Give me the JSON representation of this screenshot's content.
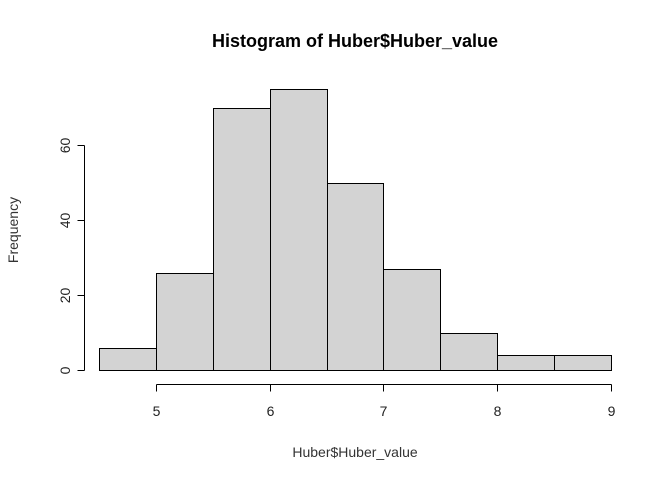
{
  "chart_data": {
    "type": "bar",
    "title": "Histogram of Huber$Huber_value",
    "xlabel": "Huber$Huber_value",
    "ylabel": "Frequency",
    "bins": [
      {
        "start": 4.5,
        "end": 5.0,
        "count": 6
      },
      {
        "start": 5.0,
        "end": 5.5,
        "count": 26
      },
      {
        "start": 5.5,
        "end": 6.0,
        "count": 70
      },
      {
        "start": 6.0,
        "end": 6.5,
        "count": 75
      },
      {
        "start": 6.5,
        "end": 7.0,
        "count": 50
      },
      {
        "start": 7.0,
        "end": 7.5,
        "count": 27
      },
      {
        "start": 7.5,
        "end": 8.0,
        "count": 10
      },
      {
        "start": 8.0,
        "end": 8.5,
        "count": 4
      },
      {
        "start": 8.5,
        "end": 9.0,
        "count": 4
      }
    ],
    "xlim": [
      4.5,
      9.0
    ],
    "ylim": [
      0,
      75
    ],
    "x_ticks": [
      5,
      6,
      7,
      8,
      9
    ],
    "y_ticks": [
      0,
      20,
      40,
      60
    ],
    "bar_color": "#d3d3d3",
    "border_color": "#000000",
    "grid": false,
    "legend": "none"
  }
}
